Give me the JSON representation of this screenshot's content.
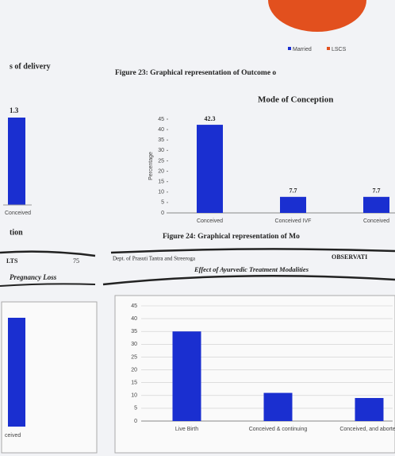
{
  "top_legend": [
    "Married",
    "LSCS"
  ],
  "left_heading_1": "s of delivery",
  "left_value_label": "1.3",
  "left_category_1": "Conceived",
  "figure_23": "Figure 23:  Graphical representation of Outcome o",
  "conception_chart": {
    "type": "bar",
    "title": "Mode of Conception",
    "y_label": "Percentage",
    "categories": [
      "Conceived",
      "Conceived IVF",
      "Conceived"
    ],
    "values": [
      42.3,
      7.7,
      7.7
    ],
    "ylim": [
      0,
      45
    ],
    "yticks": [
      0,
      5,
      10,
      15,
      20,
      25,
      30,
      35,
      40,
      45
    ],
    "color": "#1a2fd0"
  },
  "left_heading_2": "tion",
  "figure_24": "Figure 24:  Graphical representation of Mo",
  "running_header": {
    "left": "LTS",
    "page": "75",
    "dept": "Dept. of Prasuti Tantra and Streeroga",
    "section": "OBSERVATI"
  },
  "left_heading_3": "Pregnancy Loss",
  "left_category_2": "ceived",
  "treatment_chart": {
    "type": "bar",
    "title": "Effect of Ayurvedic Treatment Modalities",
    "categories": [
      "Live Birth",
      "Conceived & continuing",
      "Conceived, and aborted"
    ],
    "values": [
      35,
      11,
      9
    ],
    "ylim": [
      0,
      45
    ],
    "yticks": [
      0,
      5,
      10,
      15,
      20,
      25,
      30,
      35,
      40,
      45
    ],
    "color": "#1a2fd0"
  }
}
